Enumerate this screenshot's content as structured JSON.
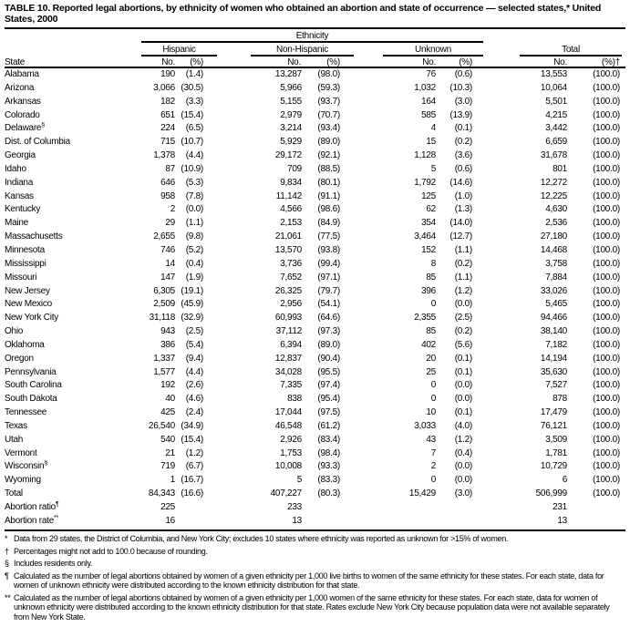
{
  "title": "TABLE 10. Reported legal abortions, by ethnicity of women who obtained an abortion and state of occurrence — selected states,* United States, 2000",
  "header": {
    "ethnicity": "Ethnicity",
    "groups": [
      "Hispanic",
      "Non-Hispanic",
      "Unknown",
      "Total"
    ],
    "state": "State",
    "no": "No.",
    "pct": "(%)",
    "pct_total": "(%)†"
  },
  "rows": [
    [
      "Alabama",
      "190",
      "(1.4)",
      "13,287",
      "(98.0)",
      "76",
      "(0.6)",
      "13,553",
      "(100.0)"
    ],
    [
      "Arizona",
      "3,066",
      "(30.5)",
      "5,966",
      "(59.3)",
      "1,032",
      "(10.3)",
      "10,064",
      "(100.0)"
    ],
    [
      "Arkansas",
      "182",
      "(3.3)",
      "5,155",
      "(93.7)",
      "164",
      "(3.0)",
      "5,501",
      "(100.0)"
    ],
    [
      "Colorado",
      "651",
      "(15.4)",
      "2,979",
      "(70.7)",
      "585",
      "(13.9)",
      "4,215",
      "(100.0)"
    ],
    [
      "Delaware§",
      "224",
      "(6.5)",
      "3,214",
      "(93.4)",
      "4",
      "(0.1)",
      "3,442",
      "(100.0)"
    ],
    [
      "Dist. of Columbia",
      "715",
      "(10.7)",
      "5,929",
      "(89.0)",
      "15",
      "(0.2)",
      "6,659",
      "(100.0)"
    ],
    [
      "Georgia",
      "1,378",
      "(4.4)",
      "29,172",
      "(92.1)",
      "1,128",
      "(3.6)",
      "31,678",
      "(100.0)"
    ],
    [
      "Idaho",
      "87",
      "(10.9)",
      "709",
      "(88.5)",
      "5",
      "(0.6)",
      "801",
      "(100.0)"
    ],
    [
      "Indiana",
      "646",
      "(5.3)",
      "9,834",
      "(80.1)",
      "1,792",
      "(14.6)",
      "12,272",
      "(100.0)"
    ],
    [
      "Kansas",
      "958",
      "(7.8)",
      "11,142",
      "(91.1)",
      "125",
      "(1.0)",
      "12,225",
      "(100.0)"
    ],
    [
      "Kentucky",
      "2",
      "(0.0)",
      "4,566",
      "(98.6)",
      "62",
      "(1.3)",
      "4,630",
      "(100.0)"
    ],
    [
      "Maine",
      "29",
      "(1.1)",
      "2,153",
      "(84.9)",
      "354",
      "(14.0)",
      "2,536",
      "(100.0)"
    ],
    [
      "Massachusetts",
      "2,655",
      "(9.8)",
      "21,061",
      "(77.5)",
      "3,464",
      "(12.7)",
      "27,180",
      "(100.0)"
    ],
    [
      "Minnesota",
      "746",
      "(5.2)",
      "13,570",
      "(93.8)",
      "152",
      "(1.1)",
      "14,468",
      "(100.0)"
    ],
    [
      "Mississippi",
      "14",
      "(0.4)",
      "3,736",
      "(99.4)",
      "8",
      "(0.2)",
      "3,758",
      "(100.0)"
    ],
    [
      "Missouri",
      "147",
      "(1.9)",
      "7,652",
      "(97.1)",
      "85",
      "(1.1)",
      "7,884",
      "(100.0)"
    ],
    [
      "New Jersey",
      "6,305",
      "(19.1)",
      "26,325",
      "(79.7)",
      "396",
      "(1.2)",
      "33,026",
      "(100.0)"
    ],
    [
      "New Mexico",
      "2,509",
      "(45.9)",
      "2,956",
      "(54.1)",
      "0",
      "(0.0)",
      "5,465",
      "(100.0)"
    ],
    [
      "New York City",
      "31,118",
      "(32.9)",
      "60,993",
      "(64.6)",
      "2,355",
      "(2.5)",
      "94,466",
      "(100.0)"
    ],
    [
      "Ohio",
      "943",
      "(2.5)",
      "37,112",
      "(97.3)",
      "85",
      "(0.2)",
      "38,140",
      "(100.0)"
    ],
    [
      "Oklahoma",
      "386",
      "(5.4)",
      "6,394",
      "(89.0)",
      "402",
      "(5.6)",
      "7,182",
      "(100.0)"
    ],
    [
      "Oregon",
      "1,337",
      "(9.4)",
      "12,837",
      "(90.4)",
      "20",
      "(0.1)",
      "14,194",
      "(100.0)"
    ],
    [
      "Pennsylvania",
      "1,577",
      "(4.4)",
      "34,028",
      "(95.5)",
      "25",
      "(0.1)",
      "35,630",
      "(100.0)"
    ],
    [
      "South Carolina",
      "192",
      "(2.6)",
      "7,335",
      "(97.4)",
      "0",
      "(0.0)",
      "7,527",
      "(100.0)"
    ],
    [
      "South Dakota",
      "40",
      "(4.6)",
      "838",
      "(95.4)",
      "0",
      "(0.0)",
      "878",
      "(100.0)"
    ],
    [
      "Tennessee",
      "425",
      "(2.4)",
      "17,044",
      "(97.5)",
      "10",
      "(0.1)",
      "17,479",
      "(100.0)"
    ],
    [
      "Texas",
      "26,540",
      "(34.9)",
      "46,548",
      "(61.2)",
      "3,033",
      "(4.0)",
      "76,121",
      "(100.0)"
    ],
    [
      "Utah",
      "540",
      "(15.4)",
      "2,926",
      "(83.4)",
      "43",
      "(1.2)",
      "3,509",
      "(100.0)"
    ],
    [
      "Vermont",
      "21",
      "(1.2)",
      "1,753",
      "(98.4)",
      "7",
      "(0.4)",
      "1,781",
      "(100.0)"
    ],
    [
      "Wisconsin§",
      "719",
      "(6.7)",
      "10,008",
      "(93.3)",
      "2",
      "(0.0)",
      "10,729",
      "(100.0)"
    ],
    [
      "Wyoming",
      "1",
      "(16.7)",
      "5",
      "(83.3)",
      "0",
      "(0.0)",
      "6",
      "(100.0)"
    ],
    [
      "Total",
      "84,343",
      "(16.6)",
      "407,227",
      "(80.3)",
      "15,429",
      "(3.0)",
      "506,999",
      "(100.0)"
    ],
    [
      "Abortion ratio¶",
      "225",
      "",
      "233",
      "",
      "",
      "",
      "231",
      ""
    ],
    [
      "Abortion rate**",
      "16",
      "",
      "13",
      "",
      "",
      "",
      "13",
      ""
    ]
  ],
  "footnotes": [
    {
      "mark": "*",
      "text": "Data from 29 states, the District of Columbia, and New York City; excludes 10 states where ethnicity was reported as unknown for >15% of women."
    },
    {
      "mark": "†",
      "text": "Percentages might not add to 100.0 because of rounding."
    },
    {
      "mark": "§",
      "text": "Includes residents only."
    },
    {
      "mark": "¶",
      "text": "Calculated as the number of legal abortions obtained by women of a given ethnicity per 1,000 live births to women of the same ethnicity for these states. For each state, data for women of unknown ethnicity were distributed according to the known ethnicity distribution for that state."
    },
    {
      "mark": "**",
      "text": "Calculated as the number of legal abortions obtained by women of a given ethnicity per 1,000 women of the same ethnicity for these states. For each state, data for women of unknown ethnicity were distributed according to the known ethnicity distribution for that state. Rates exclude New York City because population data were not available separately from New York State."
    }
  ]
}
